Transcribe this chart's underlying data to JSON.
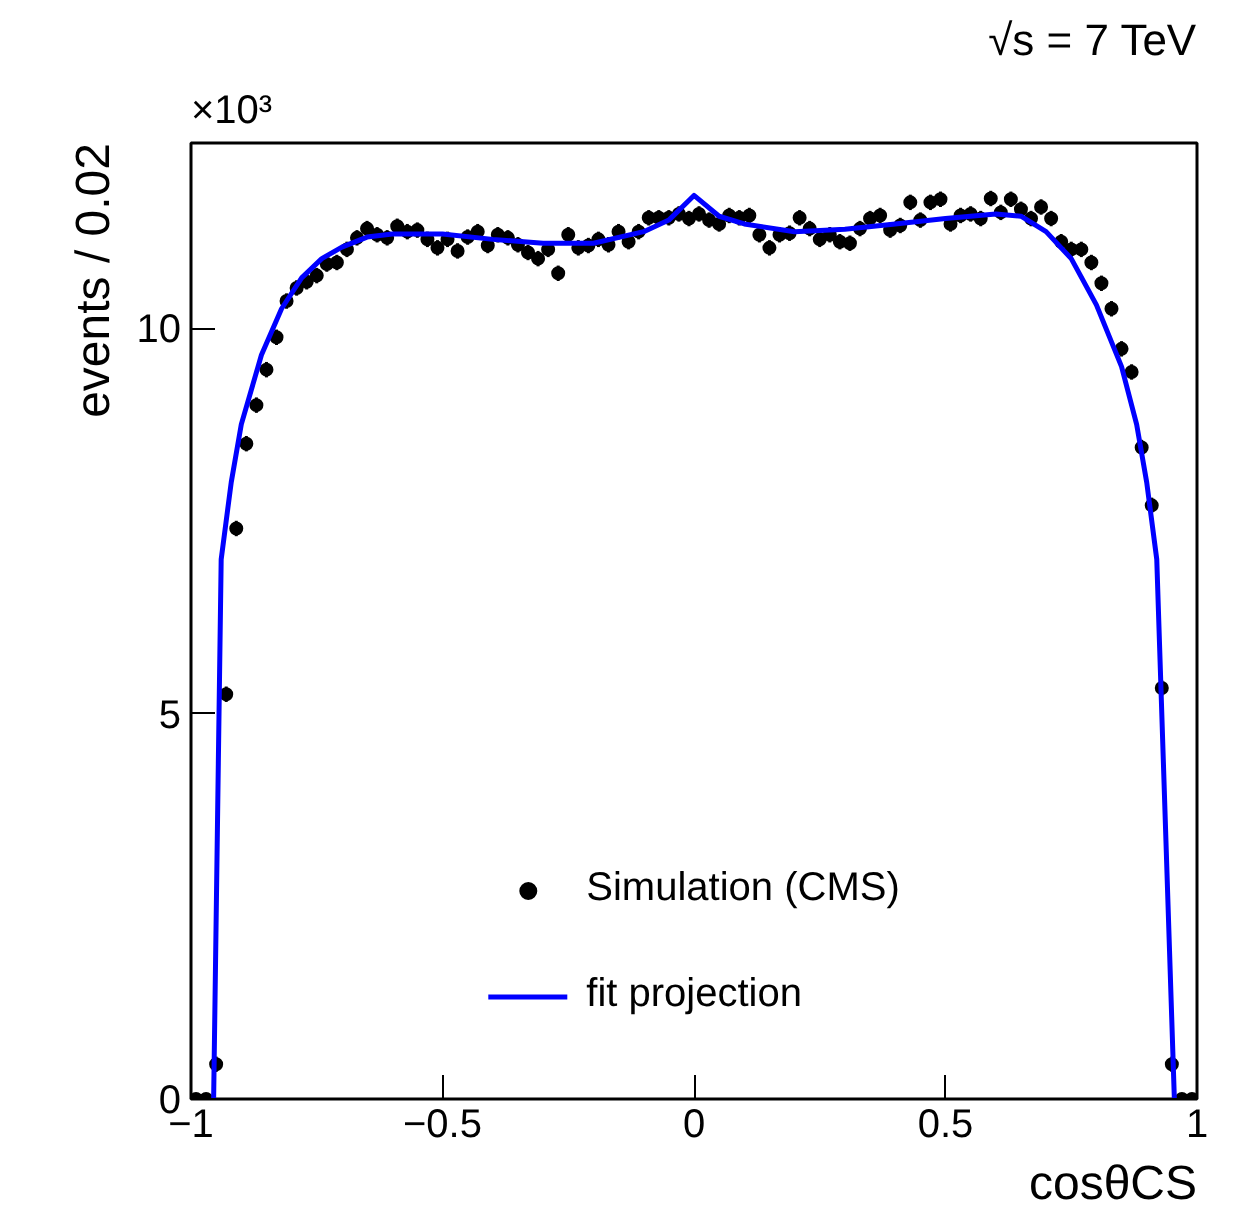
{
  "chart_data": {
    "type": "scatter",
    "xlabel": "cosθCS",
    "ylabel": "events / 0.02",
    "annotations": [
      "×10³",
      "√s = 7 TeV"
    ],
    "xlim": [
      -1,
      1
    ],
    "ylim": [
      0,
      12.4
    ],
    "xticks": [
      -1,
      -0.5,
      0,
      0.5,
      1
    ],
    "yticks": [
      0,
      5,
      10
    ],
    "grid": false,
    "legend": "bottom",
    "series": [
      {
        "name": "Simulation (CMS)",
        "marker": "circle",
        "color": "#000000",
        "x": [
          -0.99,
          -0.97,
          -0.95,
          -0.93,
          -0.91,
          -0.89,
          -0.87,
          -0.85,
          -0.83,
          -0.81,
          -0.79,
          -0.77,
          -0.75,
          -0.73,
          -0.71,
          -0.69,
          -0.67,
          -0.65,
          -0.63,
          -0.61,
          -0.59,
          -0.57,
          -0.55,
          -0.53,
          -0.51,
          -0.49,
          -0.47,
          -0.45,
          -0.43,
          -0.41,
          -0.39,
          -0.37,
          -0.35,
          -0.33,
          -0.31,
          -0.29,
          -0.27,
          -0.25,
          -0.23,
          -0.21,
          -0.19,
          -0.17,
          -0.15,
          -0.13,
          -0.11,
          -0.09,
          -0.07,
          -0.05,
          -0.03,
          -0.01,
          0.01,
          0.03,
          0.05,
          0.07,
          0.09,
          0.11,
          0.13,
          0.15,
          0.17,
          0.19,
          0.21,
          0.23,
          0.25,
          0.27,
          0.29,
          0.31,
          0.33,
          0.35,
          0.37,
          0.39,
          0.41,
          0.43,
          0.45,
          0.47,
          0.49,
          0.51,
          0.53,
          0.55,
          0.57,
          0.59,
          0.61,
          0.63,
          0.65,
          0.67,
          0.69,
          0.71,
          0.73,
          0.75,
          0.77,
          0.79,
          0.81,
          0.83,
          0.85,
          0.87,
          0.89,
          0.91,
          0.93,
          0.95,
          0.97,
          0.99
        ],
        "values": [
          0,
          0,
          0.45,
          5.25,
          7.4,
          8.5,
          9.0,
          9.46,
          9.88,
          10.35,
          10.52,
          10.6,
          10.68,
          10.83,
          10.85,
          11.02,
          11.17,
          11.29,
          11.21,
          11.17,
          11.32,
          11.25,
          11.27,
          11.15,
          11.04,
          11.15,
          11.0,
          11.18,
          11.25,
          11.07,
          11.21,
          11.17,
          11.08,
          10.98,
          10.9,
          11.02,
          10.71,
          11.21,
          11.04,
          11.07,
          11.15,
          11.08,
          11.25,
          11.12,
          11.25,
          11.43,
          11.43,
          11.43,
          11.48,
          11.42,
          11.48,
          11.4,
          11.35,
          11.46,
          11.43,
          11.46,
          11.21,
          11.04,
          11.21,
          11.23,
          11.43,
          11.29,
          11.15,
          11.21,
          11.12,
          11.1,
          11.29,
          11.42,
          11.46,
          11.27,
          11.33,
          11.63,
          11.4,
          11.63,
          11.67,
          11.35,
          11.46,
          11.48,
          11.42,
          11.68,
          11.5,
          11.67,
          11.54,
          11.42,
          11.57,
          11.42,
          11.12,
          11.02,
          11.02,
          10.85,
          10.58,
          10.25,
          9.73,
          9.43,
          8.45,
          7.7,
          5.33,
          0.45,
          0,
          0
        ],
        "errors": [
          null,
          null,
          0.1,
          0.1,
          0.1,
          0.1,
          0.1,
          0.1,
          0.1,
          0.1,
          0.1,
          0.1,
          0.1,
          0.1,
          0.1,
          0.1,
          0.1,
          0.1,
          0.1,
          0.1,
          0.1,
          0.1,
          0.1,
          0.1,
          0.1,
          0.1,
          0.1,
          0.1,
          0.1,
          0.1,
          0.1,
          0.1,
          0.1,
          0.1,
          0.1,
          0.1,
          0.1,
          0.1,
          0.1,
          0.1,
          0.1,
          0.1,
          0.1,
          0.1,
          0.1,
          0.1,
          0.1,
          0.1,
          0.1,
          0.1,
          0.1,
          0.1,
          0.1,
          0.1,
          0.1,
          0.1,
          0.1,
          0.1,
          0.1,
          0.1,
          0.1,
          0.1,
          0.1,
          0.1,
          0.1,
          0.1,
          0.1,
          0.1,
          0.1,
          0.1,
          0.1,
          0.1,
          0.1,
          0.1,
          0.1,
          0.1,
          0.1,
          0.1,
          0.1,
          0.1,
          0.1,
          0.1,
          0.1,
          0.1,
          0.1,
          0.1,
          0.1,
          0.1,
          0.1,
          0.1,
          0.1,
          0.1,
          0.1,
          0.1,
          0.1,
          0.1,
          0.1,
          0.1,
          null,
          null
        ]
      },
      {
        "name": "fit projection",
        "type": "line",
        "color": "#0000ff",
        "x": [
          -0.955,
          -0.94,
          -0.92,
          -0.9,
          -0.86,
          -0.82,
          -0.78,
          -0.74,
          -0.7,
          -0.65,
          -0.6,
          -0.5,
          -0.4,
          -0.3,
          -0.2,
          -0.1,
          -0.05,
          0,
          0.05,
          0.1,
          0.2,
          0.3,
          0.4,
          0.5,
          0.6,
          0.65,
          0.7,
          0.75,
          0.8,
          0.85,
          0.88,
          0.9,
          0.92,
          0.955
        ],
        "values": [
          0,
          7.0,
          8.0,
          8.75,
          9.65,
          10.25,
          10.65,
          10.9,
          11.05,
          11.18,
          11.22,
          11.22,
          11.15,
          11.1,
          11.1,
          11.25,
          11.4,
          11.72,
          11.45,
          11.35,
          11.25,
          11.28,
          11.35,
          11.42,
          11.48,
          11.45,
          11.25,
          10.9,
          10.3,
          9.5,
          8.75,
          8.0,
          7.0,
          0
        ]
      }
    ]
  }
}
